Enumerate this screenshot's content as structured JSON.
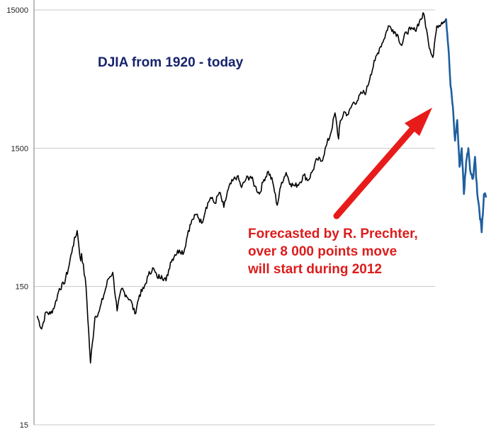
{
  "chart_data": {
    "type": "line",
    "title": "DJIA from 1920 - today",
    "y_scale": "log",
    "ylim": [
      15,
      15000
    ],
    "y_ticks": [
      {
        "value": 15000,
        "label": "15000"
      },
      {
        "value": 1500,
        "label": "1500"
      },
      {
        "value": 150,
        "label": "150"
      },
      {
        "value": 15,
        "label": "15"
      }
    ],
    "grid": true,
    "series": [
      {
        "role": "historical",
        "color": "#000000",
        "points": [
          {
            "x": 1920,
            "y": 92
          },
          {
            "x": 1921,
            "y": 74
          },
          {
            "x": 1922,
            "y": 98
          },
          {
            "x": 1923,
            "y": 95
          },
          {
            "x": 1924,
            "y": 110
          },
          {
            "x": 1925,
            "y": 145
          },
          {
            "x": 1926,
            "y": 156
          },
          {
            "x": 1927,
            "y": 200
          },
          {
            "x": 1928,
            "y": 290
          },
          {
            "x": 1929,
            "y": 381
          },
          {
            "x": 1929.8,
            "y": 230
          },
          {
            "x": 1930,
            "y": 260
          },
          {
            "x": 1931,
            "y": 150
          },
          {
            "x": 1932,
            "y": 42
          },
          {
            "x": 1933,
            "y": 90
          },
          {
            "x": 1934,
            "y": 100
          },
          {
            "x": 1935,
            "y": 130
          },
          {
            "x": 1936,
            "y": 170
          },
          {
            "x": 1937,
            "y": 190
          },
          {
            "x": 1938,
            "y": 100
          },
          {
            "x": 1939,
            "y": 145
          },
          {
            "x": 1940,
            "y": 130
          },
          {
            "x": 1941,
            "y": 120
          },
          {
            "x": 1942,
            "y": 95
          },
          {
            "x": 1943,
            "y": 130
          },
          {
            "x": 1944,
            "y": 145
          },
          {
            "x": 1945,
            "y": 180
          },
          {
            "x": 1946,
            "y": 205
          },
          {
            "x": 1947,
            "y": 175
          },
          {
            "x": 1948,
            "y": 180
          },
          {
            "x": 1949,
            "y": 165
          },
          {
            "x": 1950,
            "y": 225
          },
          {
            "x": 1951,
            "y": 255
          },
          {
            "x": 1952,
            "y": 275
          },
          {
            "x": 1953,
            "y": 265
          },
          {
            "x": 1954,
            "y": 380
          },
          {
            "x": 1955,
            "y": 460
          },
          {
            "x": 1956,
            "y": 500
          },
          {
            "x": 1957,
            "y": 430
          },
          {
            "x": 1958,
            "y": 560
          },
          {
            "x": 1959,
            "y": 660
          },
          {
            "x": 1960,
            "y": 600
          },
          {
            "x": 1961,
            "y": 720
          },
          {
            "x": 1962,
            "y": 560
          },
          {
            "x": 1963,
            "y": 760
          },
          {
            "x": 1964,
            "y": 870
          },
          {
            "x": 1965,
            "y": 940
          },
          {
            "x": 1966,
            "y": 780
          },
          {
            "x": 1967,
            "y": 900
          },
          {
            "x": 1968,
            "y": 940
          },
          {
            "x": 1969,
            "y": 800
          },
          {
            "x": 1970,
            "y": 700
          },
          {
            "x": 1971,
            "y": 890
          },
          {
            "x": 1972,
            "y": 1020
          },
          {
            "x": 1973,
            "y": 850
          },
          {
            "x": 1974,
            "y": 580
          },
          {
            "x": 1975,
            "y": 850
          },
          {
            "x": 1976,
            "y": 1000
          },
          {
            "x": 1977,
            "y": 830
          },
          {
            "x": 1978,
            "y": 800
          },
          {
            "x": 1979,
            "y": 840
          },
          {
            "x": 1980,
            "y": 960
          },
          {
            "x": 1981,
            "y": 880
          },
          {
            "x": 1982,
            "y": 1040
          },
          {
            "x": 1983,
            "y": 1250
          },
          {
            "x": 1984,
            "y": 1210
          },
          {
            "x": 1985,
            "y": 1550
          },
          {
            "x": 1986,
            "y": 1900
          },
          {
            "x": 1987,
            "y": 2700
          },
          {
            "x": 1987.8,
            "y": 1750
          },
          {
            "x": 1988,
            "y": 2150
          },
          {
            "x": 1989,
            "y": 2750
          },
          {
            "x": 1990,
            "y": 2630
          },
          {
            "x": 1991,
            "y": 3170
          },
          {
            "x": 1992,
            "y": 3300
          },
          {
            "x": 1993,
            "y": 3750
          },
          {
            "x": 1994,
            "y": 3830
          },
          {
            "x": 1995,
            "y": 5100
          },
          {
            "x": 1996,
            "y": 6450
          },
          {
            "x": 1997,
            "y": 7900
          },
          {
            "x": 1998,
            "y": 9200
          },
          {
            "x": 1999,
            "y": 11500
          },
          {
            "x": 2000,
            "y": 10800
          },
          {
            "x": 2001,
            "y": 10000
          },
          {
            "x": 2002,
            "y": 8300
          },
          {
            "x": 2003,
            "y": 10400
          },
          {
            "x": 2004,
            "y": 10800
          },
          {
            "x": 2005,
            "y": 10700
          },
          {
            "x": 2006,
            "y": 12400
          },
          {
            "x": 2007,
            "y": 14000
          },
          {
            "x": 2008,
            "y": 8800
          },
          {
            "x": 2009,
            "y": 6800
          },
          {
            "x": 2009.5,
            "y": 9300
          },
          {
            "x": 2010,
            "y": 11500
          },
          {
            "x": 2011,
            "y": 12200
          },
          {
            "x": 2012,
            "y": 13000
          }
        ]
      },
      {
        "role": "forecast",
        "color": "#1f5f9f",
        "points": [
          {
            "x": 2012,
            "y": 13000
          },
          {
            "x": 2012.5,
            "y": 8000
          },
          {
            "x": 2013,
            "y": 4200
          },
          {
            "x": 2013.5,
            "y": 3000
          },
          {
            "x": 2014,
            "y": 1700
          },
          {
            "x": 2014.5,
            "y": 2400
          },
          {
            "x": 2015,
            "y": 1100
          },
          {
            "x": 2015.5,
            "y": 1500
          },
          {
            "x": 2016,
            "y": 700
          },
          {
            "x": 2016.5,
            "y": 1200
          },
          {
            "x": 2017,
            "y": 1500
          },
          {
            "x": 2017.5,
            "y": 1000
          },
          {
            "x": 2018,
            "y": 900
          },
          {
            "x": 2018.5,
            "y": 1300
          },
          {
            "x": 2019,
            "y": 700
          },
          {
            "x": 2019.5,
            "y": 520
          },
          {
            "x": 2020,
            "y": 370
          },
          {
            "x": 2020.5,
            "y": 700
          },
          {
            "x": 2021,
            "y": 660
          }
        ]
      }
    ],
    "annotations": [
      {
        "text": "Forecasted by R. Prechter,",
        "color": "#dd1c1c"
      },
      {
        "text": "over 8 000 points move",
        "color": "#dd1c1c"
      },
      {
        "text": "will start during 2012",
        "color": "#dd1c1c"
      }
    ],
    "title_color": "#17236b",
    "arrow_color": "#e81b1b"
  }
}
